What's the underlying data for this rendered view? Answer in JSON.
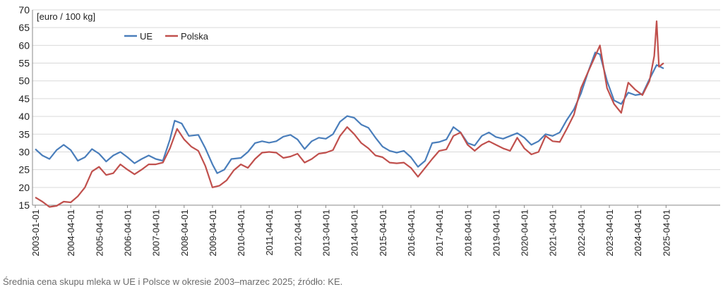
{
  "caption": "Średnia cena skupu mleka w UE i Polsce w okresie 2003–marzec 2025; źródło: KE.",
  "chart_data": {
    "type": "line",
    "unit_label": "[euro / 100 kg]",
    "ylim": [
      15,
      70
    ],
    "yticks": [
      15,
      20,
      25,
      30,
      35,
      40,
      45,
      50,
      55,
      60,
      65,
      70
    ],
    "xlim": [
      "2003-01-01",
      "2025-03-01"
    ],
    "xticks": [
      "2003-01-01",
      "2004-04-01",
      "2005-04-01",
      "2006-04-01",
      "2007-04-01",
      "2008-04-01",
      "2009-04-01",
      "2010-04-01",
      "2011-04-01",
      "2012-04-01",
      "2013-04-01",
      "2014-04-01",
      "2015-04-01",
      "2016-04-01",
      "2017-04-01",
      "2018-04-01",
      "2019-04-01",
      "2020-04-01",
      "2021-04-01",
      "2022-04-01",
      "2023-04-01",
      "2024-04-01",
      "2025-04-01"
    ],
    "grid": "horizontal",
    "legend_position": "top-left",
    "series": [
      {
        "name": "UE",
        "color": "#4a7ebb",
        "points": [
          [
            "2003-01-01",
            30.8
          ],
          [
            "2003-04-01",
            29.0
          ],
          [
            "2003-07-01",
            28.0
          ],
          [
            "2003-10-01",
            30.5
          ],
          [
            "2004-01-01",
            32.0
          ],
          [
            "2004-04-01",
            30.5
          ],
          [
            "2004-07-01",
            27.5
          ],
          [
            "2004-10-01",
            28.5
          ],
          [
            "2005-01-01",
            30.8
          ],
          [
            "2005-04-01",
            29.5
          ],
          [
            "2005-07-01",
            27.3
          ],
          [
            "2005-10-01",
            29.0
          ],
          [
            "2006-01-01",
            30.0
          ],
          [
            "2006-04-01",
            28.5
          ],
          [
            "2006-07-01",
            26.8
          ],
          [
            "2006-10-01",
            28.0
          ],
          [
            "2007-01-01",
            29.0
          ],
          [
            "2007-04-01",
            28.0
          ],
          [
            "2007-07-01",
            27.5
          ],
          [
            "2007-10-01",
            33.5
          ],
          [
            "2007-12-01",
            38.8
          ],
          [
            "2008-03-01",
            38.0
          ],
          [
            "2008-06-01",
            34.5
          ],
          [
            "2008-10-01",
            34.8
          ],
          [
            "2009-01-01",
            31.0
          ],
          [
            "2009-04-01",
            26.5
          ],
          [
            "2009-06-01",
            24.0
          ],
          [
            "2009-09-01",
            25.0
          ],
          [
            "2009-12-01",
            28.0
          ],
          [
            "2010-04-01",
            28.3
          ],
          [
            "2010-07-01",
            30.0
          ],
          [
            "2010-10-01",
            32.5
          ],
          [
            "2011-01-01",
            33.0
          ],
          [
            "2011-04-01",
            32.6
          ],
          [
            "2011-07-01",
            33.0
          ],
          [
            "2011-10-01",
            34.3
          ],
          [
            "2012-01-01",
            34.8
          ],
          [
            "2012-04-01",
            33.5
          ],
          [
            "2012-07-01",
            30.8
          ],
          [
            "2012-10-01",
            33.0
          ],
          [
            "2013-01-01",
            34.0
          ],
          [
            "2013-04-01",
            33.7
          ],
          [
            "2013-07-01",
            35.0
          ],
          [
            "2013-10-01",
            38.5
          ],
          [
            "2014-01-01",
            40.1
          ],
          [
            "2014-04-01",
            39.6
          ],
          [
            "2014-07-01",
            37.7
          ],
          [
            "2014-10-01",
            36.8
          ],
          [
            "2015-01-01",
            34.0
          ],
          [
            "2015-04-01",
            31.5
          ],
          [
            "2015-07-01",
            30.3
          ],
          [
            "2015-10-01",
            29.8
          ],
          [
            "2016-01-01",
            30.3
          ],
          [
            "2016-04-01",
            28.5
          ],
          [
            "2016-07-01",
            25.8
          ],
          [
            "2016-10-01",
            27.5
          ],
          [
            "2017-01-01",
            32.5
          ],
          [
            "2017-04-01",
            32.8
          ],
          [
            "2017-07-01",
            33.5
          ],
          [
            "2017-10-01",
            37.0
          ],
          [
            "2018-01-01",
            35.5
          ],
          [
            "2018-04-01",
            32.5
          ],
          [
            "2018-07-01",
            31.8
          ],
          [
            "2018-10-01",
            34.5
          ],
          [
            "2019-01-01",
            35.5
          ],
          [
            "2019-04-01",
            34.2
          ],
          [
            "2019-07-01",
            33.7
          ],
          [
            "2019-10-01",
            34.5
          ],
          [
            "2020-01-01",
            35.3
          ],
          [
            "2020-04-01",
            34.0
          ],
          [
            "2020-07-01",
            32.0
          ],
          [
            "2020-10-01",
            33.0
          ],
          [
            "2021-01-01",
            35.0
          ],
          [
            "2021-04-01",
            34.5
          ],
          [
            "2021-07-01",
            35.5
          ],
          [
            "2021-10-01",
            39.0
          ],
          [
            "2022-01-01",
            42.0
          ],
          [
            "2022-04-01",
            46.5
          ],
          [
            "2022-07-01",
            52.5
          ],
          [
            "2022-10-01",
            58.0
          ],
          [
            "2022-12-01",
            57.5
          ],
          [
            "2023-03-01",
            50.0
          ],
          [
            "2023-06-01",
            44.5
          ],
          [
            "2023-09-01",
            43.5
          ],
          [
            "2023-12-01",
            46.7
          ],
          [
            "2024-03-01",
            46.0
          ],
          [
            "2024-06-01",
            46.3
          ],
          [
            "2024-09-01",
            50.5
          ],
          [
            "2024-12-01",
            54.5
          ],
          [
            "2025-03-01",
            53.5
          ]
        ]
      },
      {
        "name": "Polska",
        "color": "#c0504d",
        "points": [
          [
            "2003-01-01",
            17.2
          ],
          [
            "2003-04-01",
            16.0
          ],
          [
            "2003-07-01",
            14.5
          ],
          [
            "2003-10-01",
            14.8
          ],
          [
            "2004-01-01",
            16.0
          ],
          [
            "2004-04-01",
            15.8
          ],
          [
            "2004-07-01",
            17.5
          ],
          [
            "2004-10-01",
            20.0
          ],
          [
            "2005-01-01",
            24.5
          ],
          [
            "2005-04-01",
            25.8
          ],
          [
            "2005-07-01",
            23.5
          ],
          [
            "2005-10-01",
            24.0
          ],
          [
            "2006-01-01",
            26.5
          ],
          [
            "2006-04-01",
            25.0
          ],
          [
            "2006-07-01",
            23.7
          ],
          [
            "2006-10-01",
            25.0
          ],
          [
            "2007-01-01",
            26.5
          ],
          [
            "2007-04-01",
            26.5
          ],
          [
            "2007-07-01",
            27.0
          ],
          [
            "2007-10-01",
            31.0
          ],
          [
            "2008-01-01",
            36.5
          ],
          [
            "2008-04-01",
            33.5
          ],
          [
            "2008-07-01",
            31.5
          ],
          [
            "2008-10-01",
            30.3
          ],
          [
            "2009-01-01",
            26.0
          ],
          [
            "2009-04-01",
            20.0
          ],
          [
            "2009-07-01",
            20.5
          ],
          [
            "2009-10-01",
            22.0
          ],
          [
            "2010-01-01",
            24.8
          ],
          [
            "2010-04-01",
            26.5
          ],
          [
            "2010-07-01",
            25.5
          ],
          [
            "2010-10-01",
            28.0
          ],
          [
            "2011-01-01",
            29.8
          ],
          [
            "2011-04-01",
            30.0
          ],
          [
            "2011-07-01",
            29.8
          ],
          [
            "2011-10-01",
            28.3
          ],
          [
            "2012-01-01",
            28.7
          ],
          [
            "2012-04-01",
            29.5
          ],
          [
            "2012-07-01",
            27.0
          ],
          [
            "2012-10-01",
            28.0
          ],
          [
            "2013-01-01",
            29.5
          ],
          [
            "2013-04-01",
            29.8
          ],
          [
            "2013-07-01",
            30.5
          ],
          [
            "2013-10-01",
            34.5
          ],
          [
            "2014-01-01",
            37.0
          ],
          [
            "2014-04-01",
            35.0
          ],
          [
            "2014-07-01",
            32.5
          ],
          [
            "2014-10-01",
            31.0
          ],
          [
            "2015-01-01",
            29.0
          ],
          [
            "2015-04-01",
            28.5
          ],
          [
            "2015-07-01",
            27.0
          ],
          [
            "2015-10-01",
            26.8
          ],
          [
            "2016-01-01",
            27.0
          ],
          [
            "2016-04-01",
            25.5
          ],
          [
            "2016-07-01",
            23.0
          ],
          [
            "2016-10-01",
            25.5
          ],
          [
            "2017-01-01",
            28.0
          ],
          [
            "2017-04-01",
            30.3
          ],
          [
            "2017-07-01",
            30.7
          ],
          [
            "2017-10-01",
            34.5
          ],
          [
            "2018-01-01",
            35.5
          ],
          [
            "2018-04-01",
            32.0
          ],
          [
            "2018-07-01",
            30.3
          ],
          [
            "2018-10-01",
            32.0
          ],
          [
            "2019-01-01",
            33.0
          ],
          [
            "2019-04-01",
            32.0
          ],
          [
            "2019-07-01",
            31.0
          ],
          [
            "2019-10-01",
            30.3
          ],
          [
            "2020-01-01",
            34.0
          ],
          [
            "2020-04-01",
            31.0
          ],
          [
            "2020-07-01",
            29.3
          ],
          [
            "2020-10-01",
            30.0
          ],
          [
            "2021-01-01",
            34.5
          ],
          [
            "2021-04-01",
            33.0
          ],
          [
            "2021-07-01",
            32.8
          ],
          [
            "2021-10-01",
            36.5
          ],
          [
            "2022-01-01",
            40.5
          ],
          [
            "2022-04-01",
            48.0
          ],
          [
            "2022-07-01",
            52.5
          ],
          [
            "2022-10-01",
            57.0
          ],
          [
            "2022-12-01",
            60.0
          ],
          [
            "2023-03-01",
            48.0
          ],
          [
            "2023-06-01",
            43.5
          ],
          [
            "2023-09-01",
            41.0
          ],
          [
            "2023-12-01",
            49.5
          ],
          [
            "2024-03-01",
            47.5
          ],
          [
            "2024-06-01",
            46.0
          ],
          [
            "2024-09-01",
            50.0
          ],
          [
            "2024-11-01",
            57.0
          ],
          [
            "2024-12-01",
            66.8
          ],
          [
            "2025-01-01",
            54.0
          ],
          [
            "2025-03-01",
            55.0
          ]
        ]
      }
    ]
  }
}
